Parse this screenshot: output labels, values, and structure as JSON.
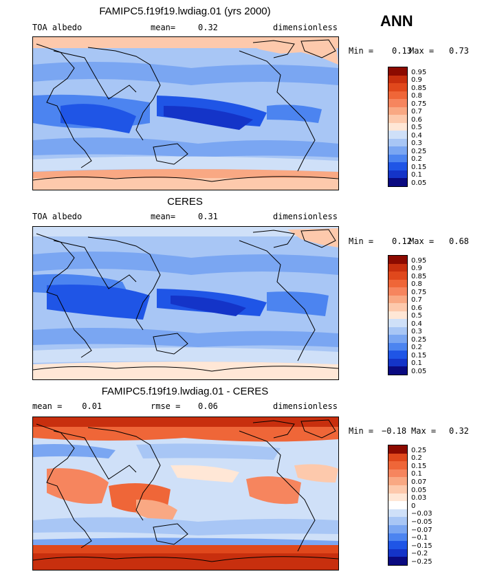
{
  "season": "ANN",
  "colors": {
    "abs_scale": [
      "#0a0a80",
      "#1434c8",
      "#1f55e6",
      "#4c84f0",
      "#7aa6f2",
      "#a8c6f5",
      "#cfe0f8",
      "#ffe7d6",
      "#fdc9ac",
      "#f9a883",
      "#f6855e",
      "#ef6638",
      "#e0481c",
      "#c82f0e",
      "#8c0a00"
    ],
    "diff_scale": [
      "#0a0a80",
      "#1434c8",
      "#1f55e6",
      "#4c84f0",
      "#7aa6f2",
      "#a8c6f5",
      "#cfe0f8",
      "#ffffff",
      "#ffe7d6",
      "#fdc9ac",
      "#f9a883",
      "#f6855e",
      "#ef6638",
      "#e0481c",
      "#8c0a00"
    ]
  },
  "panels": [
    {
      "title": "FAMIPC5.f19f19.lwdiag.01 (yrs 2000)",
      "left": "TOA albedo",
      "mid_label": "mean=",
      "mid_value": "0.32",
      "right": "dimensionless",
      "min_label": "Min =",
      "min_value": "0.13",
      "max_label": "Max =",
      "max_value": "0.73",
      "levels": [
        "0.95",
        "0.9",
        "0.85",
        "0.8",
        "0.75",
        "0.7",
        "0.6",
        "0.5",
        "0.4",
        "0.3",
        "0.25",
        "0.2",
        "0.15",
        "0.1",
        "0.05"
      ]
    },
    {
      "title": "CERES",
      "left": "TOA albedo",
      "mid_label": "mean=",
      "mid_value": "0.31",
      "right": "dimensionless",
      "min_label": "Min =",
      "min_value": "0.12",
      "max_label": "Max =",
      "max_value": "0.68",
      "levels": [
        "0.95",
        "0.9",
        "0.85",
        "0.8",
        "0.75",
        "0.7",
        "0.6",
        "0.5",
        "0.4",
        "0.3",
        "0.25",
        "0.2",
        "0.15",
        "0.1",
        "0.05"
      ]
    },
    {
      "title": "FAMIPC5.f19f19.lwdiag.01 - CERES",
      "left": "mean =    0.01",
      "mid_label": "rmse =",
      "mid_value": "0.06",
      "right": "dimensionless",
      "min_label": "Min =",
      "min_value": "−0.18",
      "max_label": "Max =",
      "max_value": "0.32",
      "levels": [
        "0.25",
        "0.2",
        "0.15",
        "0.1",
        "0.07",
        "0.05",
        "0.03",
        "0",
        "−0.03",
        "−0.05",
        "−0.07",
        "−0.1",
        "−0.15",
        "−0.2",
        "−0.25"
      ]
    }
  ]
}
